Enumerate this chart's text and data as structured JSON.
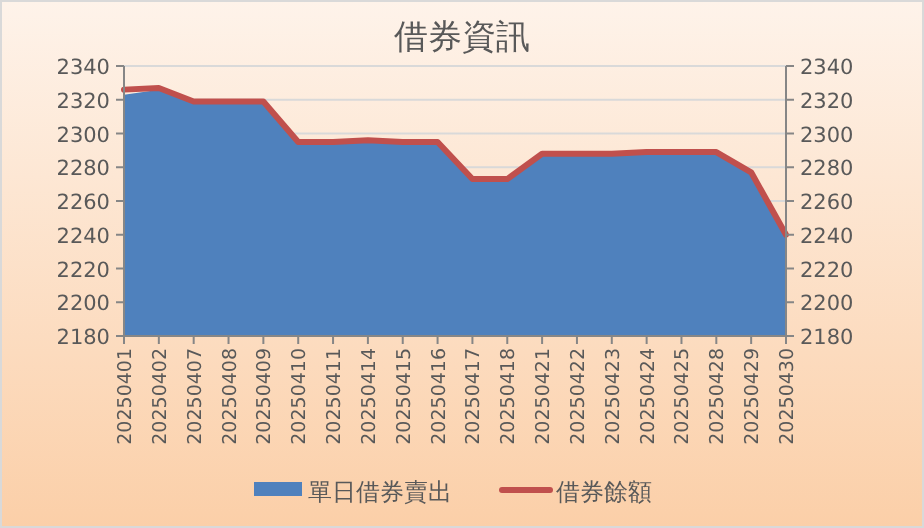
{
  "chart_data": {
    "type": "area",
    "title": "借券資訊",
    "categories": [
      "20250401",
      "20250402",
      "20250407",
      "20250408",
      "20250409",
      "20250410",
      "20250411",
      "20250414",
      "20250415",
      "20250416",
      "20250417",
      "20250418",
      "20250421",
      "20250422",
      "20250423",
      "20250424",
      "20250425",
      "20250428",
      "20250429",
      "20250430"
    ],
    "series": [
      {
        "name": "單日借券賣出",
        "color": "#4f81bd",
        "values": [
          2323,
          2326,
          2319,
          2319,
          2319,
          2295,
          2295,
          2295,
          2295,
          2295,
          2273,
          2273,
          2288,
          2288,
          2288,
          2289,
          2289,
          2289,
          2277,
          2240
        ]
      },
      {
        "name": "借券餘額",
        "type": "line",
        "axis": "y2",
        "color": "#c0504d",
        "values": [
          2326,
          2327,
          2319,
          2319,
          2319,
          2295,
          2295,
          2296,
          2295,
          2295,
          2273,
          2273,
          2288,
          2288,
          2288,
          2289,
          2289,
          2289,
          2277,
          2240
        ]
      }
    ],
    "ylim": [
      2180,
      2340
    ],
    "yticks": [
      2180,
      2200,
      2220,
      2240,
      2260,
      2280,
      2300,
      2320,
      2340
    ],
    "y2lim": [
      2180,
      2340
    ],
    "y2ticks": [
      2180,
      2200,
      2220,
      2240,
      2260,
      2280,
      2300,
      2320,
      2340
    ],
    "grid": "y",
    "legend": "bottom"
  }
}
